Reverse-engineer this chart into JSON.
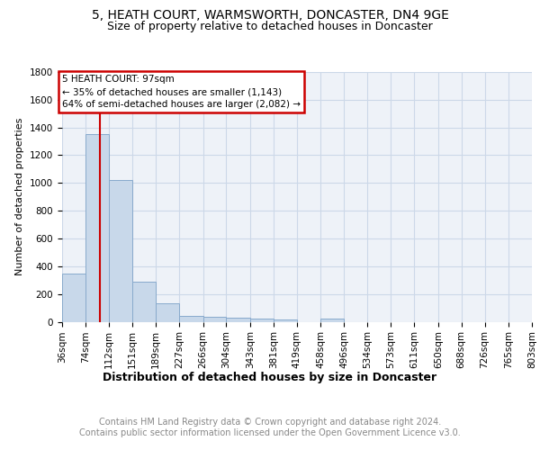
{
  "title1": "5, HEATH COURT, WARMSWORTH, DONCASTER, DN4 9GE",
  "title2": "Size of property relative to detached houses in Doncaster",
  "xlabel": "Distribution of detached houses by size in Doncaster",
  "ylabel": "Number of detached properties",
  "footnote1": "Contains HM Land Registry data © Crown copyright and database right 2024.",
  "footnote2": "Contains public sector information licensed under the Open Government Licence v3.0.",
  "bin_edges": [
    36,
    74,
    112,
    151,
    189,
    227,
    266,
    304,
    343,
    381,
    419,
    458,
    496,
    534,
    573,
    611,
    650,
    688,
    726,
    765,
    803
  ],
  "bin_labels": [
    "36sqm",
    "74sqm",
    "112sqm",
    "151sqm",
    "189sqm",
    "227sqm",
    "266sqm",
    "304sqm",
    "343sqm",
    "381sqm",
    "419sqm",
    "458sqm",
    "496sqm",
    "534sqm",
    "573sqm",
    "611sqm",
    "650sqm",
    "688sqm",
    "726sqm",
    "765sqm",
    "803sqm"
  ],
  "bar_heights": [
    350,
    1350,
    1020,
    290,
    130,
    40,
    37,
    30,
    20,
    15,
    0,
    20,
    0,
    0,
    0,
    0,
    0,
    0,
    0,
    0
  ],
  "bar_color": "#c8d8ea",
  "bar_edge_color": "#88aacc",
  "grid_color": "#ccd8e8",
  "bg_color": "#eef2f8",
  "red_line_x": 97,
  "annotation_line1": "5 HEATH COURT: 97sqm",
  "annotation_line2": "← 35% of detached houses are smaller (1,143)",
  "annotation_line3": "64% of semi-detached houses are larger (2,082) →",
  "annotation_box_edgecolor": "#cc0000",
  "red_line_color": "#cc0000",
  "ylim": [
    0,
    1800
  ],
  "yticks": [
    0,
    200,
    400,
    600,
    800,
    1000,
    1200,
    1400,
    1600,
    1800
  ],
  "title1_fontsize": 10,
  "title2_fontsize": 9,
  "xlabel_fontsize": 9,
  "ylabel_fontsize": 8,
  "footnote_fontsize": 7,
  "tick_fontsize": 7.5,
  "annot_fontsize": 7.5
}
